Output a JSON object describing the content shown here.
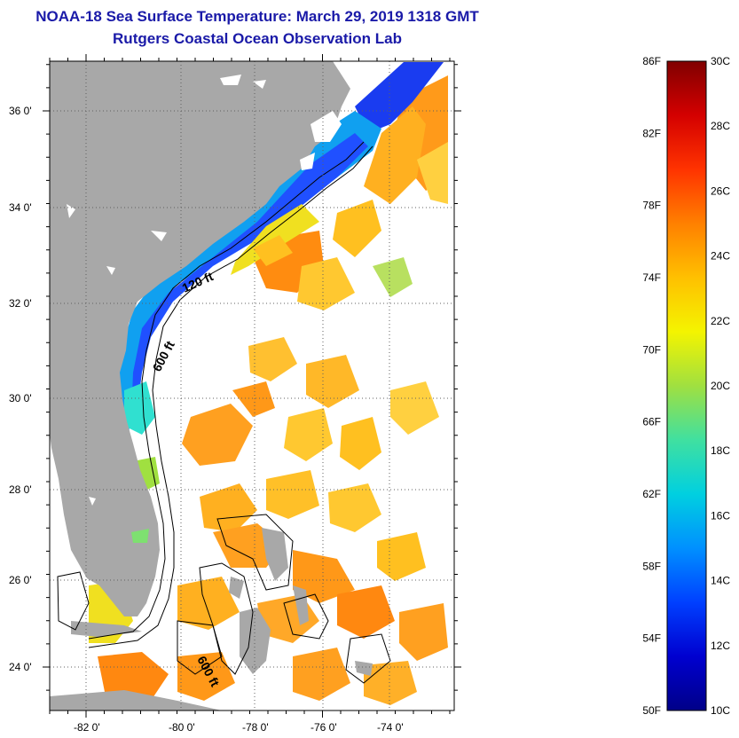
{
  "title": "NOAA-18 Sea Surface Temperature:  March 29, 2019 1318 GMT",
  "subtitle": "Rutgers Coastal Ocean Observation Lab",
  "map": {
    "lat_labels": [
      "36 0'",
      "34 0'",
      "32 0'",
      "30 0'",
      "28 0'",
      "26 0'",
      "24 0'"
    ],
    "lon_labels": [
      "-82 0'",
      "-80 0'",
      "-78 0'",
      "-76 0'",
      "-74 0'"
    ],
    "contours": {
      "shelf_120": "120 ft",
      "slope_600_north": "600 ft",
      "slope_600_south": "600 ft"
    },
    "colors": {
      "land": "#a8a8a8",
      "cloud": "#ffffff"
    }
  },
  "colorbar": {
    "fahrenheit_labels": [
      "86F",
      "82F",
      "78F",
      "74F",
      "70F",
      "66F",
      "62F",
      "58F",
      "54F",
      "50F"
    ],
    "celsius_labels": [
      "30C",
      "28C",
      "26C",
      "24C",
      "22C",
      "20C",
      "18C",
      "16C",
      "14C",
      "12C",
      "10C"
    ],
    "gradient_top_to_bottom": [
      "#800000",
      "#d40000",
      "#ff3300",
      "#ff8000",
      "#ffc000",
      "#f4f400",
      "#a0e040",
      "#40e0a0",
      "#00d0e0",
      "#0090ff",
      "#0040ff",
      "#0000d0",
      "#000088"
    ]
  }
}
